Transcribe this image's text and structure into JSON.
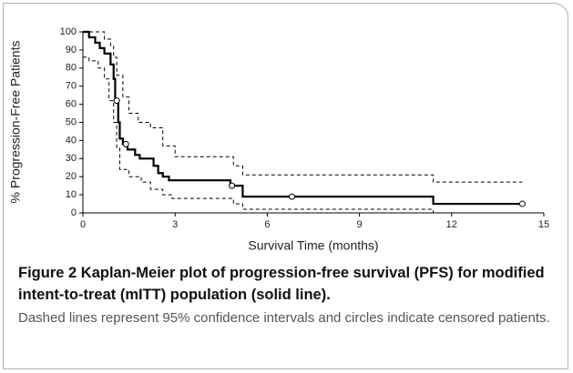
{
  "chart_data": {
    "type": "line",
    "step": "post",
    "xlabel": "Survival Time (months)",
    "ylabel": "% Progression-Free Patients",
    "xlim": [
      0,
      15
    ],
    "xticks": [
      0,
      3,
      6,
      9,
      12,
      15
    ],
    "ylim": [
      0,
      100
    ],
    "yticks": [
      0,
      10,
      20,
      30,
      40,
      50,
      60,
      70,
      80,
      90,
      100
    ],
    "series": [
      {
        "color": "#000000",
        "dash": false,
        "width": 2.2,
        "x": [
          0,
          0.2,
          0.4,
          0.55,
          0.7,
          0.9,
          1.0,
          1.05,
          1.15,
          1.2,
          1.3,
          1.45,
          1.7,
          1.85,
          2.3,
          2.45,
          2.6,
          2.8,
          4.8,
          5.2,
          11.4,
          14.3
        ],
        "values": [
          100,
          97,
          94,
          91,
          88,
          82,
          74,
          62,
          50,
          41,
          38,
          35,
          32,
          30,
          26,
          22,
          20,
          18,
          15,
          9,
          5,
          5
        ]
      },
      {
        "color": "#000000",
        "dash": true,
        "width": 1,
        "x": [
          0,
          0.7,
          0.9,
          1.0,
          1.1,
          1.3,
          1.5,
          1.8,
          2.2,
          2.6,
          3.0,
          4.9,
          5.2,
          11.4,
          14.3
        ],
        "values": [
          100,
          96,
          92,
          86,
          76,
          64,
          55,
          50,
          47,
          37,
          31,
          26,
          21,
          17,
          17
        ]
      },
      {
        "color": "#000000",
        "dash": true,
        "width": 1,
        "x": [
          0,
          0.2,
          0.5,
          0.7,
          0.85,
          1.0,
          1.1,
          1.2,
          1.5,
          1.9,
          2.2,
          2.6,
          2.9,
          4.9,
          5.2,
          11.4,
          14.3
        ],
        "values": [
          86,
          84,
          80,
          74,
          62,
          50,
          36,
          24,
          20,
          17,
          13,
          10,
          8,
          5,
          2,
          0,
          0
        ]
      },
      {
        "color": "#000000",
        "marker": "circle",
        "x": [
          1.1,
          1.4,
          4.85,
          6.8,
          14.3
        ],
        "values": [
          62,
          38,
          15,
          9,
          5
        ]
      }
    ]
  },
  "caption": {
    "label": "Figure 2",
    "title": "Kaplan-Meier plot of progression-free survival (PFS) for modified intent-to-treat (mITT) population (solid line).",
    "text": "Dashed lines represent 95% confidence intervals and circles indicate censored patients."
  }
}
